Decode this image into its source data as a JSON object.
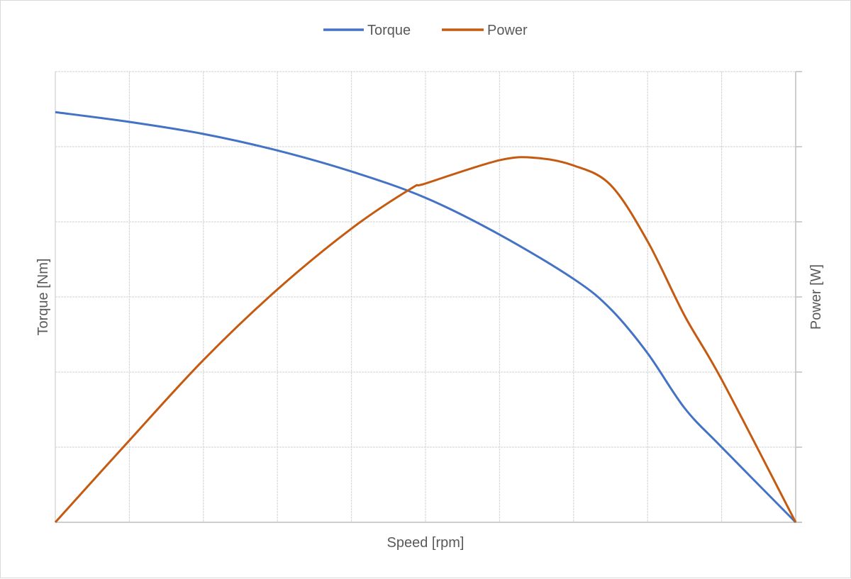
{
  "chart_data": {
    "type": "line",
    "title": "",
    "xlabel": "Speed [rpm]",
    "ylabel": "Torque [Nm]",
    "y2label": "Power [W]",
    "tick_labels_shown": false,
    "xlim": [
      0,
      10
    ],
    "ylim": [
      0,
      6
    ],
    "y2lim": [
      0,
      6
    ],
    "grid": true,
    "legend": {
      "placement": "top",
      "entries": [
        "Torque",
        "Power"
      ]
    },
    "series": [
      {
        "name": "Torque",
        "axis": "left",
        "color": "#4472C4",
        "x": [
          0,
          1,
          2,
          3,
          4,
          5,
          6,
          7,
          7.5,
          8,
          8.5,
          9,
          10
        ],
        "values": [
          5.46,
          5.33,
          5.17,
          4.95,
          4.67,
          4.32,
          3.83,
          3.24,
          2.84,
          2.25,
          1.52,
          1.0,
          0
        ]
      },
      {
        "name": "Power",
        "axis": "right",
        "color": "#C55A11",
        "x": [
          0,
          1,
          2,
          3,
          4,
          4.8,
          5,
          6,
          6.5,
          7,
          7.5,
          8,
          8.5,
          9,
          10
        ],
        "values": [
          0,
          1.09,
          2.16,
          3.1,
          3.91,
          4.44,
          4.51,
          4.82,
          4.85,
          4.75,
          4.49,
          3.74,
          2.75,
          1.9,
          0
        ]
      }
    ]
  }
}
